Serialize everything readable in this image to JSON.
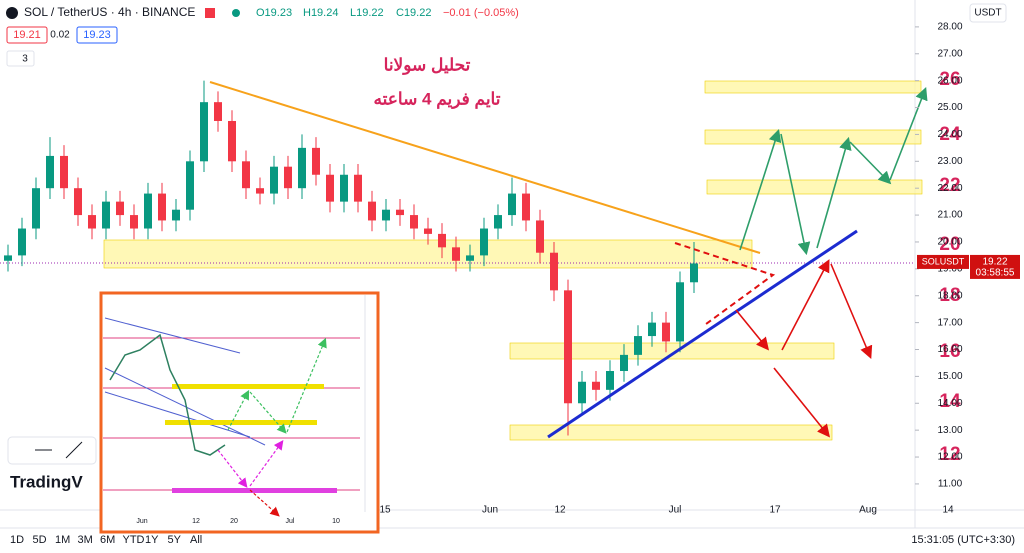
{
  "header": {
    "symbol": "SOL / TetherUS · 4h · BINANCE",
    "open": "O19.23",
    "high": "H19.24",
    "low": "L19.22",
    "close": "C19.22",
    "change": "−0.01 (−0.05%)",
    "bid": "19.21",
    "spread": "0.02",
    "ask": "19.23",
    "indicators": "3",
    "currency": "USDT"
  },
  "chart_data": {
    "type": "candlestick",
    "open": [
      19.3,
      19.5,
      20.5,
      22,
      23.2,
      22,
      21,
      20.5,
      21.5,
      21,
      20.5,
      21.8,
      20.8,
      21.2,
      23,
      25.2,
      24.5,
      23,
      22,
      21.8,
      22.8,
      22,
      23.5,
      22.5,
      21.5,
      22.5,
      21.5,
      20.8,
      21.2,
      21,
      20.5,
      20.3,
      19.8,
      19.3,
      19.5,
      20.5,
      21,
      21.8,
      20.8,
      19.6,
      18.2,
      14,
      14.8,
      14.5,
      15.2,
      15.8,
      16.5,
      17,
      16.3,
      18.5
    ],
    "high": [
      19.9,
      20.9,
      22.4,
      23.9,
      23.6,
      22.4,
      21.4,
      21.9,
      21.9,
      21.4,
      22.2,
      22.2,
      21.6,
      23.4,
      26,
      25.6,
      24.9,
      23.4,
      22.4,
      23.2,
      23.2,
      24,
      23.9,
      22.9,
      22.9,
      22.9,
      21.9,
      21.6,
      21.6,
      21.4,
      20.9,
      20.7,
      20.2,
      19.9,
      20.9,
      21.4,
      22.4,
      22.2,
      21.2,
      20,
      18.6,
      15.2,
      15.2,
      15.6,
      16.2,
      16.9,
      17.4,
      17.4,
      18.9,
      20
    ],
    "low": [
      18.9,
      19.1,
      20.1,
      21.6,
      21.6,
      20.6,
      20.1,
      20.1,
      20.6,
      20.1,
      20.1,
      20.4,
      20.4,
      20.8,
      22.6,
      24.1,
      22.6,
      21.6,
      21.4,
      21.4,
      21.6,
      21.6,
      22.1,
      21.1,
      21.1,
      21.1,
      20.4,
      20.4,
      20.6,
      20.1,
      19.9,
      19.4,
      18.9,
      18.9,
      19.1,
      20.1,
      20.6,
      20.4,
      19.2,
      17.8,
      12.8,
      13.6,
      14.1,
      14.1,
      14.8,
      15.4,
      16.1,
      15.9,
      15.9,
      18.1
    ],
    "close": [
      19.5,
      20.5,
      22,
      23.2,
      22,
      21,
      20.5,
      21.5,
      21,
      20.5,
      21.8,
      20.8,
      21.2,
      23,
      25.2,
      24.5,
      23,
      22,
      21.8,
      22.8,
      22,
      23.5,
      22.5,
      21.5,
      22.5,
      21.5,
      20.8,
      21.2,
      21,
      20.5,
      20.3,
      19.8,
      19.3,
      19.5,
      20.5,
      21,
      21.8,
      20.8,
      19.6,
      18.2,
      14,
      14.8,
      14.5,
      15.2,
      15.8,
      16.5,
      17,
      16.3,
      18.5,
      19.2
    ],
    "up_color": "#089981",
    "down_color": "#f23645",
    "ylim": [
      10.03,
      29.0
    ],
    "yticks": [
      {
        "value": 11,
        "label": "11.00"
      },
      {
        "value": 12,
        "label": "12.00"
      },
      {
        "value": 13,
        "label": "13.00"
      },
      {
        "value": 14,
        "label": "14.00"
      },
      {
        "value": 15,
        "label": "15.00"
      },
      {
        "value": 16,
        "label": "16.00"
      },
      {
        "value": 17,
        "label": "17.00"
      },
      {
        "value": 18,
        "label": "18.00"
      },
      {
        "value": 19,
        "label": "19.00"
      },
      {
        "value": 20,
        "label": "20.00"
      },
      {
        "value": 21,
        "label": "21.00"
      },
      {
        "value": 22,
        "label": "22.00"
      },
      {
        "value": 23,
        "label": "23.00"
      },
      {
        "value": 24,
        "label": "24.00"
      },
      {
        "value": 25,
        "label": "25.00"
      },
      {
        "value": 26,
        "label": "26.00"
      },
      {
        "value": 27,
        "label": "27.00"
      },
      {
        "value": 28,
        "label": "28.00"
      }
    ],
    "x_labels": [
      "15",
      "Jun",
      "12",
      "Jul",
      "17",
      "Aug",
      "14"
    ],
    "last_price": {
      "symbol": "SOLUSDT",
      "value": 19.22,
      "countdown": "03:58:55"
    }
  },
  "annotations": {
    "title_line1": "تحلیل سولانا",
    "title_line2": "تایم فریم 4 ساعته",
    "levels": [
      "26",
      "24",
      "22",
      "20",
      "18",
      "16",
      "14",
      "12"
    ]
  },
  "inset": {
    "x_labels": [
      "Jun",
      "12",
      "20",
      "Jul",
      "10"
    ]
  },
  "watermark": "TradingV",
  "footer": {
    "ranges": [
      "1D",
      "5D",
      "1M",
      "3M",
      "6M",
      "YTD",
      "1Y",
      "5Y",
      "All"
    ],
    "clock": "15:31:05 (UTC+3:30)"
  }
}
